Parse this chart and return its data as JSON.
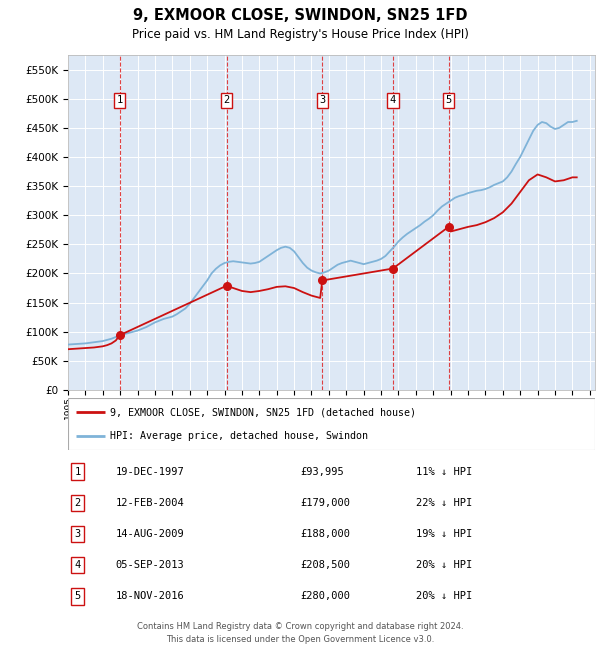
{
  "title": "9, EXMOOR CLOSE, SWINDON, SN25 1FD",
  "subtitle": "Price paid vs. HM Land Registry's House Price Index (HPI)",
  "footer_line1": "Contains HM Land Registry data © Crown copyright and database right 2024.",
  "footer_line2": "This data is licensed under the Open Government Licence v3.0.",
  "legend_label_red": "9, EXMOOR CLOSE, SWINDON, SN25 1FD (detached house)",
  "legend_label_blue": "HPI: Average price, detached house, Swindon",
  "ylim": [
    0,
    575000
  ],
  "yticks": [
    0,
    50000,
    100000,
    150000,
    200000,
    250000,
    300000,
    350000,
    400000,
    450000,
    500000,
    550000
  ],
  "ytick_labels": [
    "£0",
    "£50K",
    "£100K",
    "£150K",
    "£200K",
    "£250K",
    "£300K",
    "£350K",
    "£400K",
    "£450K",
    "£500K",
    "£550K"
  ],
  "background_color": "#dde8f5",
  "sale_dates_x": [
    1997.97,
    2004.12,
    2009.62,
    2013.68,
    2016.88
  ],
  "sale_prices_y": [
    93995,
    179000,
    188000,
    208500,
    280000
  ],
  "sale_labels": [
    "1",
    "2",
    "3",
    "4",
    "5"
  ],
  "sale_info": [
    [
      "1",
      "19-DEC-1997",
      "£93,995",
      "11% ↓ HPI"
    ],
    [
      "2",
      "12-FEB-2004",
      "£179,000",
      "22% ↓ HPI"
    ],
    [
      "3",
      "14-AUG-2009",
      "£188,000",
      "19% ↓ HPI"
    ],
    [
      "4",
      "05-SEP-2013",
      "£208,500",
      "20% ↓ HPI"
    ],
    [
      "5",
      "18-NOV-2016",
      "£280,000",
      "20% ↓ HPI"
    ]
  ],
  "hpi_x": [
    1995.0,
    1995.25,
    1995.5,
    1995.75,
    1996.0,
    1996.25,
    1996.5,
    1996.75,
    1997.0,
    1997.25,
    1997.5,
    1997.75,
    1998.0,
    1998.25,
    1998.5,
    1998.75,
    1999.0,
    1999.25,
    1999.5,
    1999.75,
    2000.0,
    2000.25,
    2000.5,
    2000.75,
    2001.0,
    2001.25,
    2001.5,
    2001.75,
    2002.0,
    2002.25,
    2002.5,
    2002.75,
    2003.0,
    2003.25,
    2003.5,
    2003.75,
    2004.0,
    2004.25,
    2004.5,
    2004.75,
    2005.0,
    2005.25,
    2005.5,
    2005.75,
    2006.0,
    2006.25,
    2006.5,
    2006.75,
    2007.0,
    2007.25,
    2007.5,
    2007.75,
    2008.0,
    2008.25,
    2008.5,
    2008.75,
    2009.0,
    2009.25,
    2009.5,
    2009.75,
    2010.0,
    2010.25,
    2010.5,
    2010.75,
    2011.0,
    2011.25,
    2011.5,
    2011.75,
    2012.0,
    2012.25,
    2012.5,
    2012.75,
    2013.0,
    2013.25,
    2013.5,
    2013.75,
    2014.0,
    2014.25,
    2014.5,
    2014.75,
    2015.0,
    2015.25,
    2015.5,
    2015.75,
    2016.0,
    2016.25,
    2016.5,
    2016.75,
    2017.0,
    2017.25,
    2017.5,
    2017.75,
    2018.0,
    2018.25,
    2018.5,
    2018.75,
    2019.0,
    2019.25,
    2019.5,
    2019.75,
    2020.0,
    2020.25,
    2020.5,
    2020.75,
    2021.0,
    2021.25,
    2021.5,
    2021.75,
    2022.0,
    2022.25,
    2022.5,
    2022.75,
    2023.0,
    2023.25,
    2023.5,
    2023.75,
    2024.0,
    2024.25
  ],
  "hpi_y": [
    78000,
    78500,
    79000,
    79500,
    80000,
    81000,
    82000,
    83000,
    84000,
    86000,
    88000,
    91000,
    94000,
    96000,
    98000,
    100000,
    102000,
    105000,
    108000,
    112000,
    116000,
    119000,
    122000,
    124000,
    126000,
    130000,
    135000,
    140000,
    148000,
    158000,
    168000,
    178000,
    188000,
    200000,
    208000,
    214000,
    218000,
    220000,
    221000,
    220000,
    219000,
    218000,
    217000,
    218000,
    220000,
    225000,
    230000,
    235000,
    240000,
    244000,
    246000,
    244000,
    238000,
    228000,
    218000,
    210000,
    205000,
    202000,
    200000,
    202000,
    205000,
    210000,
    215000,
    218000,
    220000,
    222000,
    220000,
    218000,
    216000,
    218000,
    220000,
    222000,
    225000,
    230000,
    238000,
    246000,
    255000,
    262000,
    268000,
    273000,
    278000,
    283000,
    289000,
    294000,
    300000,
    308000,
    315000,
    320000,
    325000,
    330000,
    333000,
    335000,
    338000,
    340000,
    342000,
    343000,
    345000,
    348000,
    352000,
    355000,
    358000,
    365000,
    375000,
    388000,
    400000,
    415000,
    430000,
    445000,
    455000,
    460000,
    458000,
    452000,
    448000,
    450000,
    455000,
    460000,
    460000,
    462000
  ],
  "red_line_x": [
    1995.0,
    1995.25,
    1995.5,
    1995.75,
    1996.0,
    1996.25,
    1996.5,
    1996.75,
    1997.0,
    1997.25,
    1997.5,
    1997.75,
    1997.97,
    2004.12,
    2004.5,
    2005.0,
    2005.5,
    2006.0,
    2006.5,
    2007.0,
    2007.5,
    2008.0,
    2008.5,
    2009.0,
    2009.5,
    2009.62,
    2013.68,
    2016.88,
    2017.0,
    2017.5,
    2018.0,
    2018.5,
    2019.0,
    2019.5,
    2020.0,
    2020.5,
    2021.0,
    2021.5,
    2022.0,
    2022.5,
    2023.0,
    2023.5,
    2024.0,
    2024.25
  ],
  "red_line_y": [
    70000,
    70500,
    71000,
    71500,
    72000,
    72500,
    73000,
    74000,
    75000,
    77000,
    80000,
    85000,
    93995,
    179000,
    175000,
    170000,
    168000,
    170000,
    173000,
    177000,
    178000,
    175000,
    168000,
    162000,
    158000,
    188000,
    208500,
    280000,
    272000,
    276000,
    280000,
    283000,
    288000,
    295000,
    305000,
    320000,
    340000,
    360000,
    370000,
    365000,
    358000,
    360000,
    365000,
    365000
  ],
  "xlim_left": 1995.0,
  "xlim_right": 2025.3,
  "xticks": [
    1995,
    1996,
    1997,
    1998,
    1999,
    2000,
    2001,
    2002,
    2003,
    2004,
    2005,
    2006,
    2007,
    2008,
    2009,
    2010,
    2011,
    2012,
    2013,
    2014,
    2015,
    2016,
    2017,
    2018,
    2019,
    2020,
    2021,
    2022,
    2023,
    2024,
    2025
  ]
}
